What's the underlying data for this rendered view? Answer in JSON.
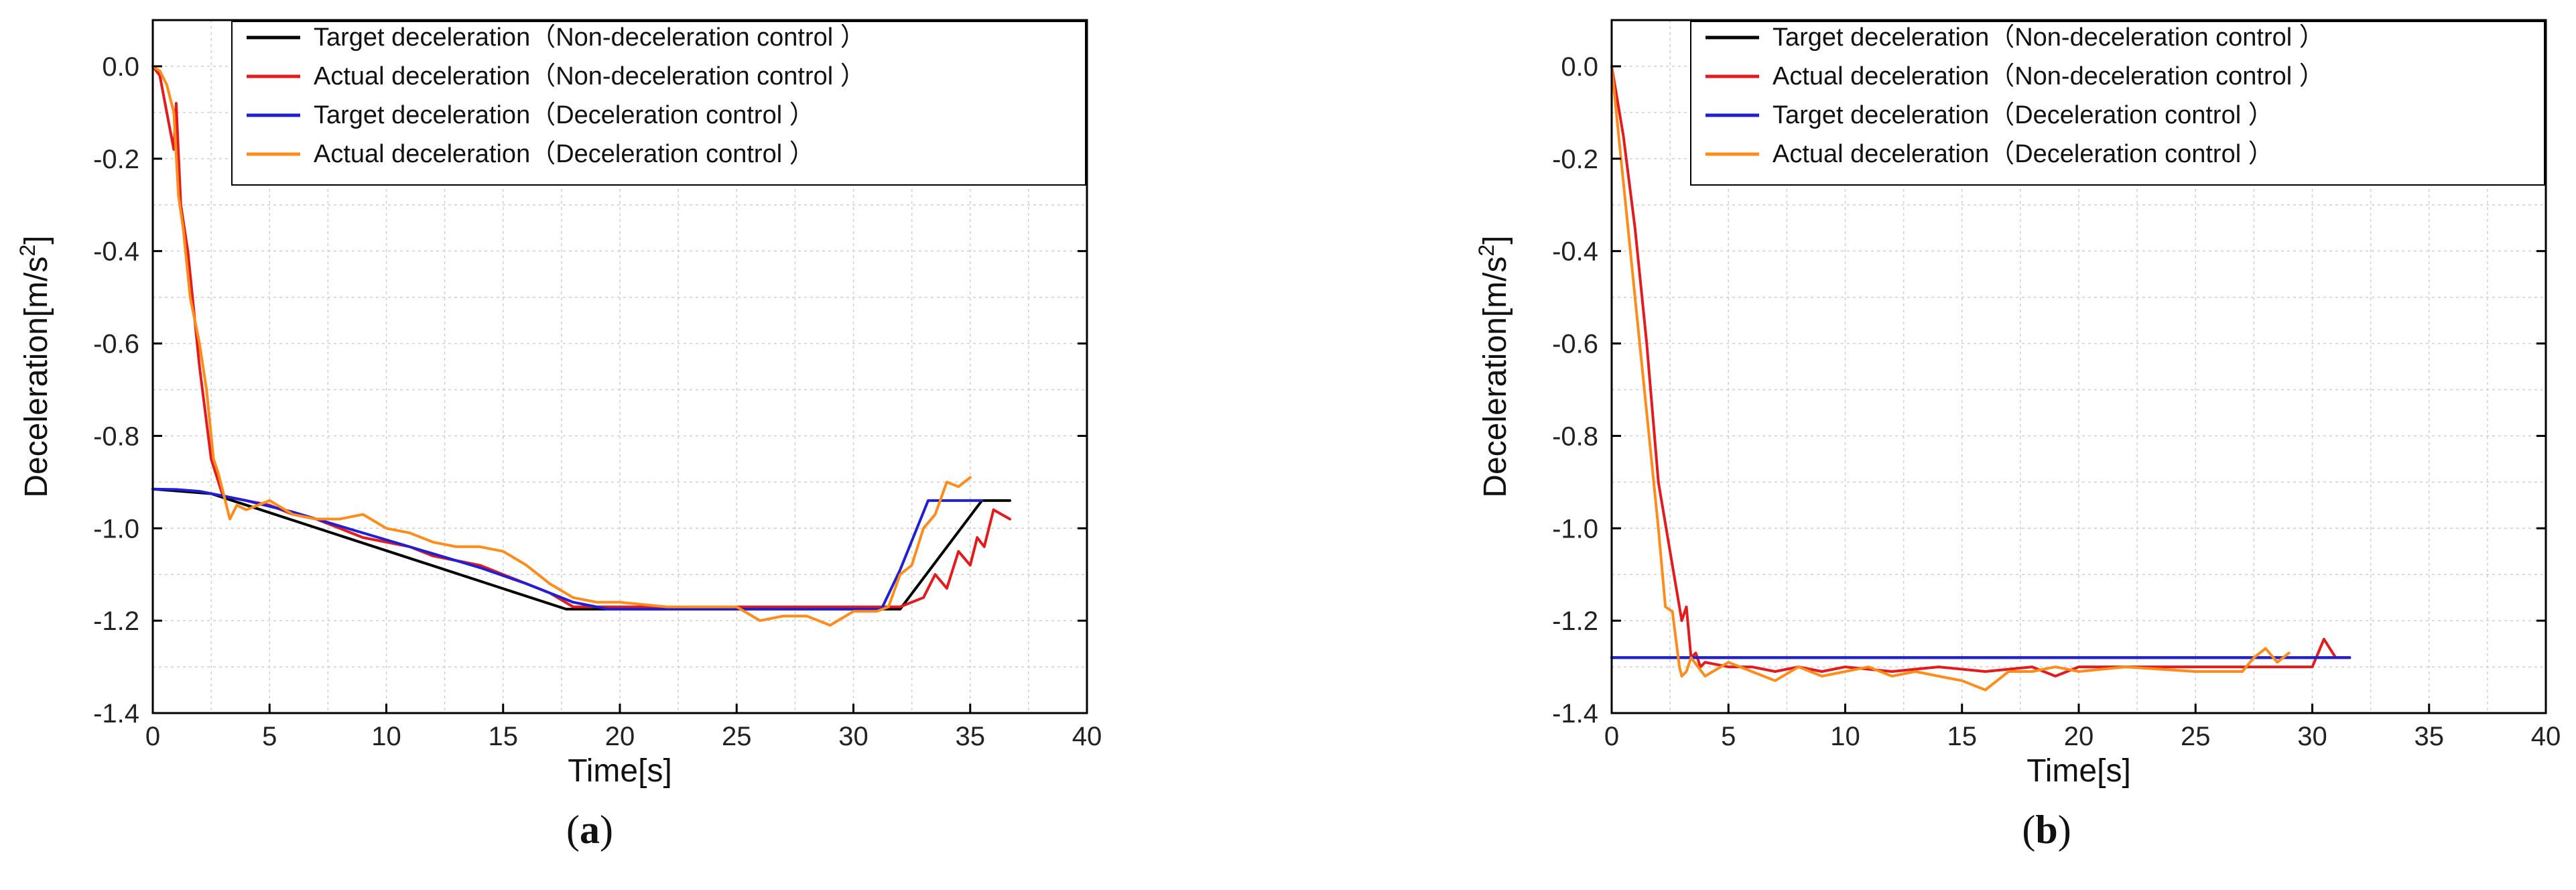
{
  "figure": {
    "panels": [
      "a",
      "b"
    ]
  },
  "legend_entries": [
    {
      "label": "Target deceleration（Non-deceleration control ）",
      "color": "#000000"
    },
    {
      "label": "Actual deceleration（Non-deceleration control ）",
      "color": "#e41a1c"
    },
    {
      "label": "Target deceleration（Deceleration control ）",
      "color": "#1f1fd6"
    },
    {
      "label": "Actual deceleration（Deceleration control ）",
      "color": "#ff8c1a"
    }
  ],
  "chart_data": [
    {
      "type": "line",
      "caption": "(a)",
      "caption_letter": "a",
      "xlabel": "Time[s]",
      "ylabel": "Deceleration[m/s",
      "ylabel_sup": "2",
      "ylabel_end": "]",
      "xlim": [
        0,
        40
      ],
      "ylim": [
        -1.4,
        0.1
      ],
      "xticks": [
        0,
        5,
        10,
        15,
        20,
        25,
        30,
        35,
        40
      ],
      "yticks": [
        0.0,
        -0.2,
        -0.4,
        -0.6,
        -0.8,
        -1.0,
        -1.2,
        -1.4
      ],
      "ytick_labels": [
        "0.0",
        "-0.2",
        "-0.4",
        "-0.6",
        "-0.8",
        "-1.0",
        "-1.2",
        "-1.4"
      ],
      "grid": true,
      "legend_position": "top-right",
      "series": [
        {
          "name": "Target deceleration（Non-deceleration control ）",
          "color": "#000000",
          "x": [
            0,
            2.5,
            17.7,
            32.0,
            35.5,
            36.7
          ],
          "y": [
            -0.915,
            -0.925,
            -1.175,
            -1.175,
            -0.94,
            -0.94
          ]
        },
        {
          "name": "Actual deceleration（Non-deceleration control ）",
          "color": "#e41a1c",
          "x": [
            0,
            0.3,
            0.6,
            0.9,
            1.0,
            1.2,
            1.5,
            2.0,
            2.5,
            3.0,
            4,
            5,
            6,
            7,
            8,
            9,
            10,
            11,
            12,
            13,
            14,
            15,
            16,
            17,
            18,
            19,
            20,
            22,
            25,
            28,
            31,
            32,
            33,
            33.5,
            34,
            34.5,
            35,
            35.3,
            35.6,
            36,
            36.7
          ],
          "y": [
            0.0,
            -0.02,
            -0.1,
            -0.18,
            -0.08,
            -0.3,
            -0.4,
            -0.65,
            -0.85,
            -0.93,
            -0.94,
            -0.95,
            -0.97,
            -0.98,
            -1.0,
            -1.02,
            -1.03,
            -1.04,
            -1.06,
            -1.07,
            -1.08,
            -1.1,
            -1.12,
            -1.14,
            -1.17,
            -1.17,
            -1.17,
            -1.17,
            -1.17,
            -1.17,
            -1.17,
            -1.17,
            -1.15,
            -1.1,
            -1.13,
            -1.05,
            -1.08,
            -1.02,
            -1.04,
            -0.96,
            -0.98
          ]
        },
        {
          "name": "Target deceleration（Deceleration control ）",
          "color": "#1f1fd6",
          "x": [
            0,
            1,
            2,
            3,
            4,
            6,
            8,
            10,
            12,
            14,
            16,
            18,
            19.5,
            31.2,
            32,
            33.2,
            35.5
          ],
          "y": [
            -0.915,
            -0.916,
            -0.92,
            -0.93,
            -0.94,
            -0.965,
            -0.995,
            -1.025,
            -1.055,
            -1.085,
            -1.12,
            -1.16,
            -1.175,
            -1.175,
            -1.09,
            -0.94,
            -0.94
          ]
        },
        {
          "name": "Actual deceleration（Deceleration control ）",
          "color": "#ff8c1a",
          "x": [
            0,
            0.3,
            0.6,
            0.9,
            1.1,
            1.3,
            1.6,
            2.0,
            2.3,
            2.6,
            2.8,
            3.0,
            3.3,
            3.6,
            4,
            5,
            6,
            7,
            8,
            9,
            10,
            11,
            12,
            13,
            14,
            15,
            16,
            17,
            18,
            19,
            20,
            22,
            25,
            26,
            27,
            28,
            29,
            30,
            31,
            31.5,
            32,
            32.5,
            33,
            33.5,
            34,
            34.5,
            35
          ],
          "y": [
            0.0,
            -0.01,
            -0.04,
            -0.1,
            -0.28,
            -0.35,
            -0.5,
            -0.6,
            -0.7,
            -0.85,
            -0.88,
            -0.92,
            -0.98,
            -0.95,
            -0.96,
            -0.94,
            -0.97,
            -0.98,
            -0.98,
            -0.97,
            -1.0,
            -1.01,
            -1.03,
            -1.04,
            -1.04,
            -1.05,
            -1.08,
            -1.12,
            -1.15,
            -1.16,
            -1.16,
            -1.17,
            -1.17,
            -1.2,
            -1.19,
            -1.19,
            -1.21,
            -1.18,
            -1.18,
            -1.17,
            -1.1,
            -1.08,
            -1.0,
            -0.97,
            -0.9,
            -0.91,
            -0.89
          ]
        }
      ]
    },
    {
      "type": "line",
      "caption": "(b)",
      "caption_letter": "b",
      "xlabel": "Time[s]",
      "ylabel": "Deceleration[m/s",
      "ylabel_sup": "2",
      "ylabel_end": "]",
      "xlim": [
        0,
        40
      ],
      "ylim": [
        -1.4,
        0.1
      ],
      "xticks": [
        0,
        5,
        10,
        15,
        20,
        25,
        30,
        35,
        40
      ],
      "yticks": [
        0.0,
        -0.2,
        -0.4,
        -0.6,
        -0.8,
        -1.0,
        -1.2,
        -1.4
      ],
      "ytick_labels": [
        "0.0",
        "-0.2",
        "-0.4",
        "-0.6",
        "-0.8",
        "-1.0",
        "-1.2",
        "-1.4"
      ],
      "grid": true,
      "legend_position": "top-right",
      "series": [
        {
          "name": "Target deceleration（Non-deceleration control ）",
          "color": "#000000",
          "x": [
            0,
            3.5,
            31.6
          ],
          "y": [
            -1.28,
            -1.28,
            -1.28
          ]
        },
        {
          "name": "Actual deceleration（Non-deceleration control ）",
          "color": "#e41a1c",
          "x": [
            0,
            0.5,
            1.0,
            1.5,
            2.0,
            2.5,
            3.0,
            3.2,
            3.4,
            3.6,
            3.8,
            4.0,
            5,
            6,
            7,
            8,
            9,
            10,
            12,
            14,
            16,
            18,
            19,
            20,
            22,
            25,
            28,
            30,
            30.5,
            31,
            31.6
          ],
          "y": [
            0.0,
            -0.15,
            -0.35,
            -0.6,
            -0.9,
            -1.05,
            -1.2,
            -1.17,
            -1.28,
            -1.27,
            -1.3,
            -1.29,
            -1.3,
            -1.3,
            -1.31,
            -1.3,
            -1.31,
            -1.3,
            -1.31,
            -1.3,
            -1.31,
            -1.3,
            -1.32,
            -1.3,
            -1.3,
            -1.3,
            -1.3,
            -1.3,
            -1.24,
            -1.28,
            -1.28
          ]
        },
        {
          "name": "Target deceleration（Deceleration control ）",
          "color": "#1f1fd6",
          "x": [
            0,
            31.6
          ],
          "y": [
            -1.28,
            -1.28
          ]
        },
        {
          "name": "Actual deceleration（Deceleration control ）",
          "color": "#ff8c1a",
          "x": [
            0,
            0.4,
            0.8,
            1.2,
            1.6,
            2.0,
            2.3,
            2.6,
            2.9,
            3.0,
            3.2,
            3.4,
            3.7,
            4,
            5,
            6,
            7,
            8,
            9,
            10,
            11,
            12,
            13,
            14,
            15,
            16,
            17,
            18,
            19,
            20,
            22,
            25,
            27,
            27.5,
            28,
            28.5,
            29
          ],
          "y": [
            0.0,
            -0.2,
            -0.4,
            -0.6,
            -0.8,
            -1.0,
            -1.17,
            -1.18,
            -1.3,
            -1.32,
            -1.31,
            -1.28,
            -1.3,
            -1.32,
            -1.29,
            -1.31,
            -1.33,
            -1.3,
            -1.32,
            -1.31,
            -1.3,
            -1.32,
            -1.31,
            -1.32,
            -1.33,
            -1.35,
            -1.31,
            -1.31,
            -1.3,
            -1.31,
            -1.3,
            -1.31,
            -1.31,
            -1.28,
            -1.26,
            -1.29,
            -1.27
          ]
        }
      ]
    }
  ]
}
